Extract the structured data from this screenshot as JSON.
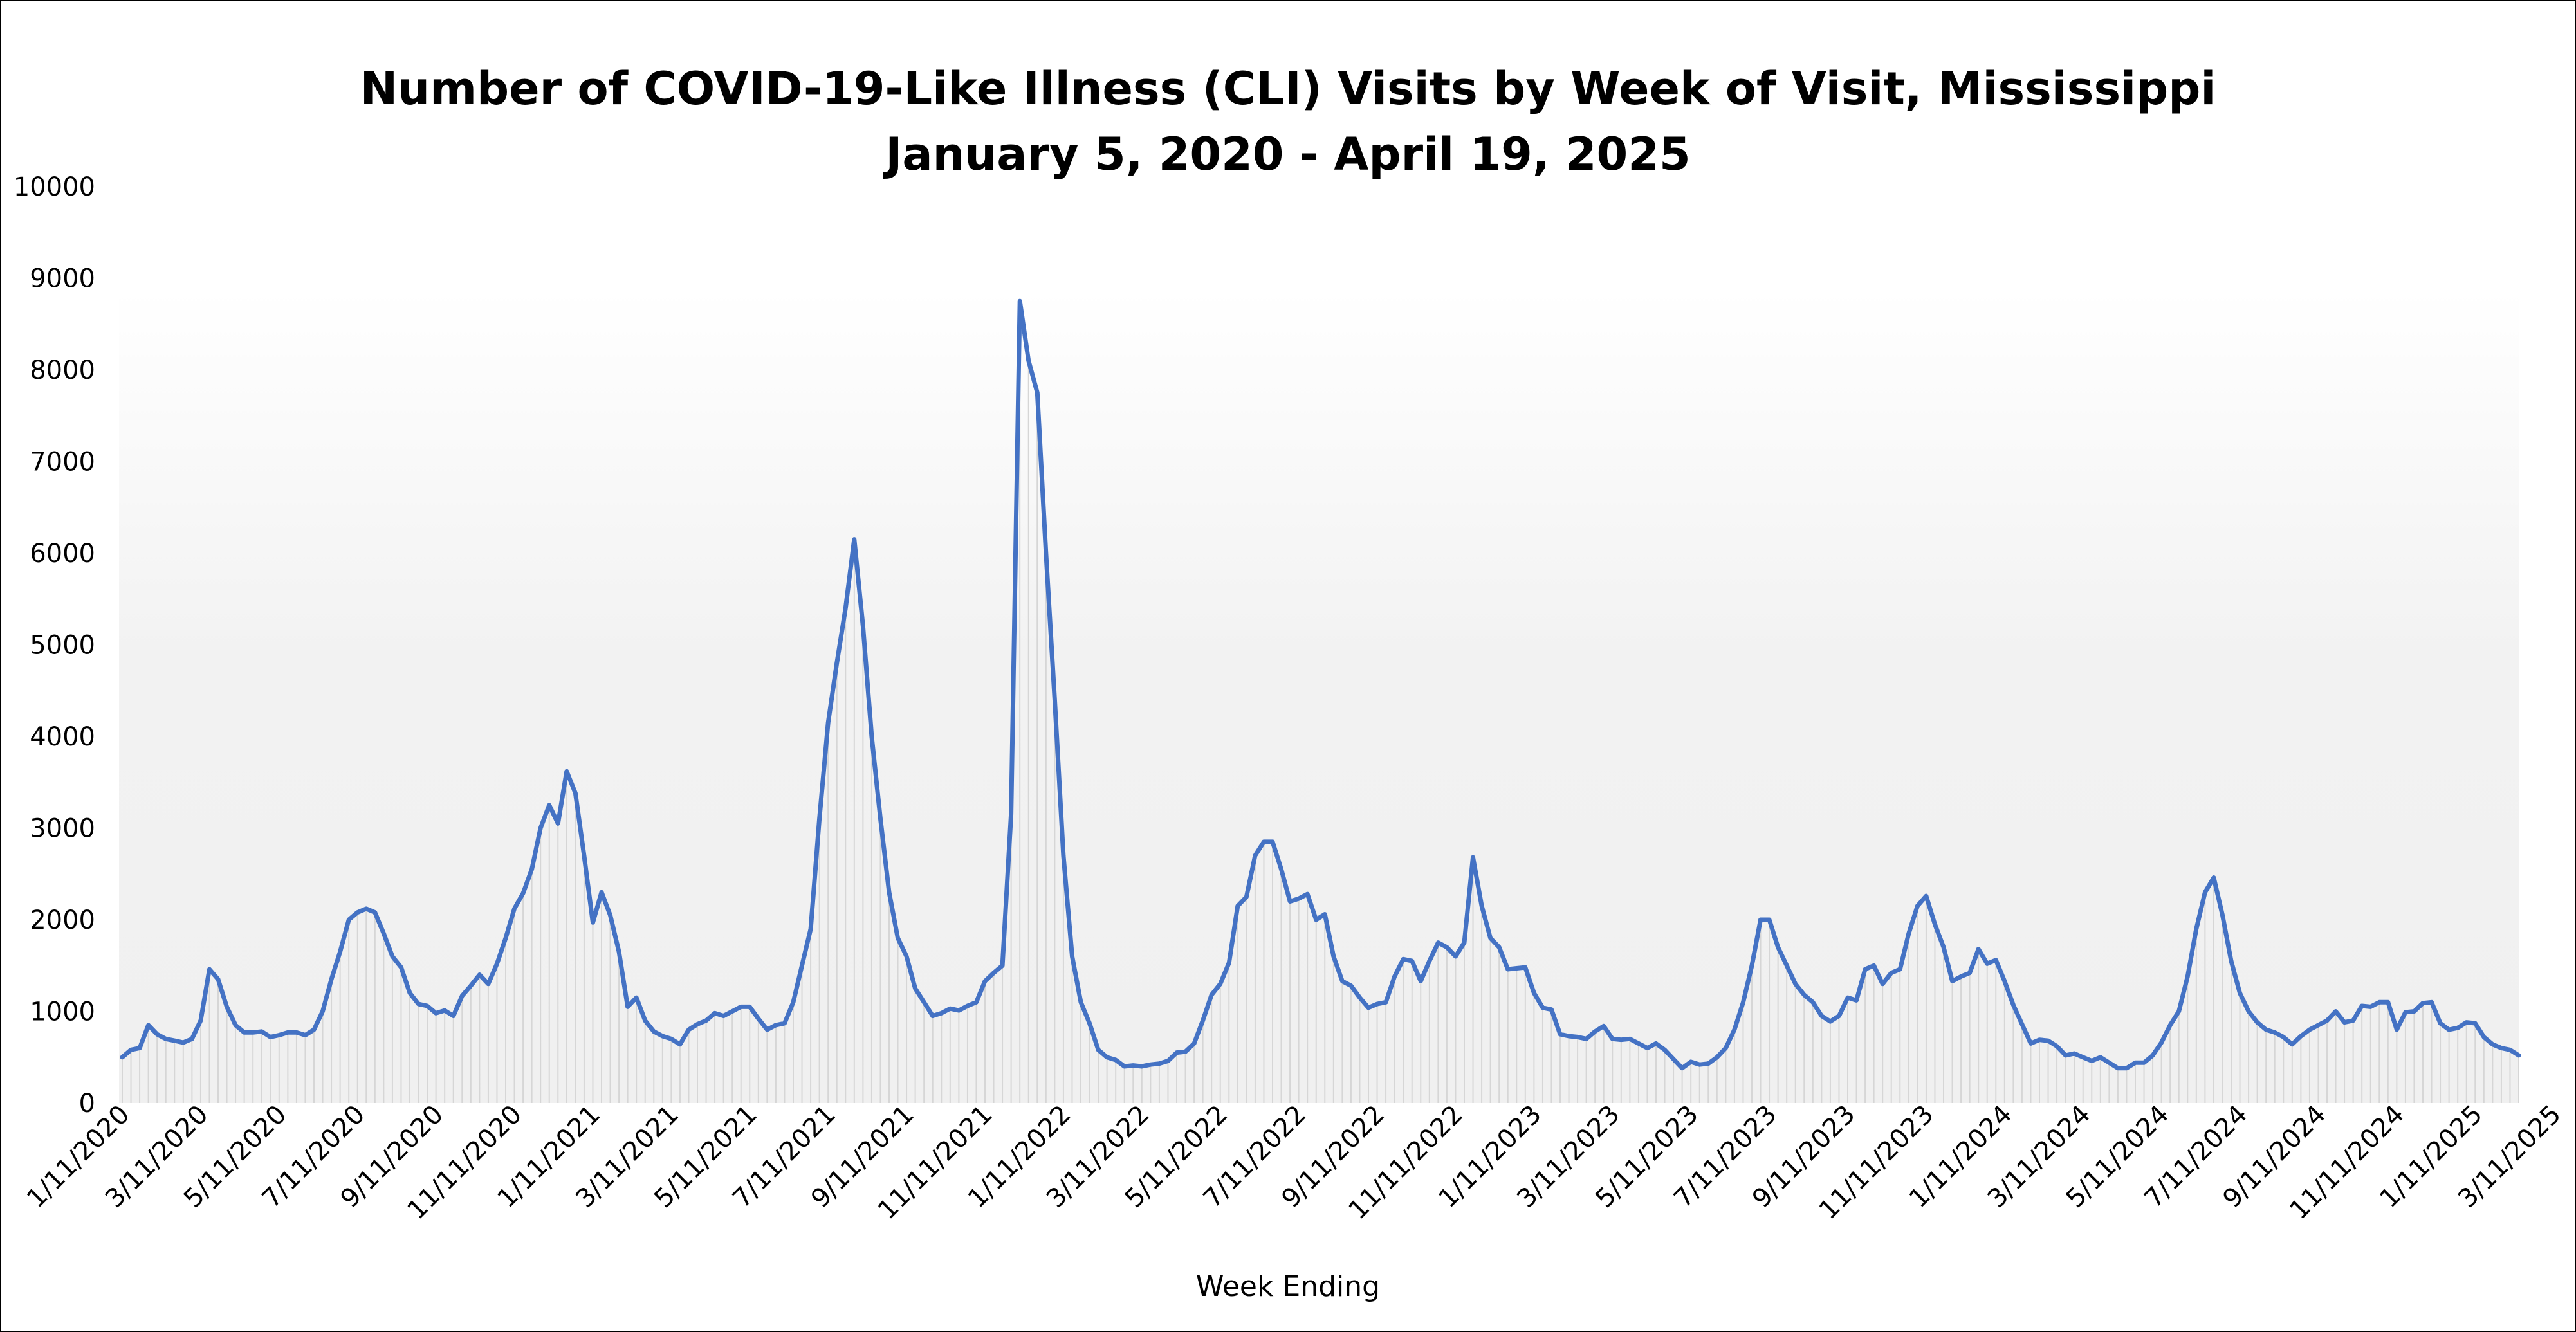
{
  "chart_data": {
    "type": "line",
    "title": "Number of COVID-19-Like Illness (CLI) Visits by Week of Visit, Mississippi",
    "subtitle": "January 5, 2020 - April 19, 2025",
    "xlabel": "Week Ending",
    "ylabel": "",
    "ylim": [
      0,
      10000
    ],
    "y_ticks": [
      "0",
      "1000",
      "2000",
      "3000",
      "4000",
      "5000",
      "6000",
      "7000",
      "8000",
      "9000",
      "10000"
    ],
    "x_tick_labels": [
      "1/11/2020",
      "3/11/2020",
      "5/11/2020",
      "7/11/2020",
      "9/11/2020",
      "11/11/2020",
      "1/11/2021",
      "3/11/2021",
      "5/11/2021",
      "7/11/2021",
      "9/11/2021",
      "11/11/2021",
      "1/11/2022",
      "3/11/2022",
      "5/11/2022",
      "7/11/2022",
      "9/11/2022",
      "11/11/2022",
      "1/11/2023",
      "3/11/2023",
      "5/11/2023",
      "7/11/2023",
      "9/11/2023",
      "11/11/2023",
      "1/11/2024",
      "3/11/2024",
      "5/11/2024",
      "7/11/2024",
      "9/11/2024",
      "11/11/2024",
      "1/11/2025",
      "3/11/2025"
    ],
    "x_range": [
      "1/5/2020",
      "4/19/2025"
    ],
    "grid": false,
    "legend": "none",
    "line_color": "#4472c4",
    "series": [
      {
        "values": [
          500,
          580,
          600,
          850,
          750,
          700,
          680,
          660,
          700,
          900,
          1460,
          1350,
          1050,
          850,
          770,
          770,
          780,
          720,
          740,
          770,
          770,
          740,
          800,
          1000,
          1350,
          1650,
          2000,
          2080,
          2120,
          2080,
          1850,
          1600,
          1480,
          1200,
          1080,
          1060,
          980,
          1010,
          950,
          1170,
          1280,
          1400,
          1300,
          1520,
          1800,
          2120,
          2290,
          2550,
          3000,
          3250,
          3050,
          3620,
          3380,
          2700,
          1970,
          2300,
          2050,
          1650,
          1050,
          1150,
          900,
          780,
          730,
          700,
          640,
          800,
          860,
          900,
          980,
          950,
          1000,
          1050,
          1050,
          920,
          800,
          850,
          870,
          1100,
          1500,
          1900,
          3100,
          4150,
          4800,
          5400,
          6150,
          5200,
          4000,
          3100,
          2300,
          1800,
          1600,
          1250,
          1100,
          950,
          980,
          1030,
          1010,
          1060,
          1100,
          1330,
          1420,
          1500,
          3150,
          8750,
          8100,
          7750,
          6000,
          4400,
          2700,
          1600,
          1100,
          870,
          580,
          500,
          470,
          400,
          410,
          400,
          420,
          430,
          460,
          550,
          560,
          650,
          900,
          1180,
          1300,
          1530,
          2150,
          2250,
          2700,
          2850,
          2850,
          2550,
          2200,
          2230,
          2280,
          2000,
          2060,
          1600,
          1330,
          1280,
          1150,
          1040,
          1080,
          1100,
          1380,
          1570,
          1550,
          1330,
          1550,
          1750,
          1700,
          1600,
          1750,
          2680,
          2150,
          1800,
          1700,
          1460,
          1470,
          1480,
          1200,
          1040,
          1020,
          750,
          730,
          720,
          700,
          780,
          840,
          700,
          690,
          700,
          650,
          600,
          650,
          580,
          480,
          380,
          450,
          420,
          430,
          500,
          600,
          800,
          1100,
          1500,
          2000,
          2000,
          1700,
          1500,
          1300,
          1180,
          1100,
          950,
          890,
          950,
          1150,
          1120,
          1460,
          1500,
          1300,
          1420,
          1460,
          1850,
          2150,
          2260,
          1950,
          1700,
          1330,
          1380,
          1420,
          1680,
          1520,
          1560,
          1330,
          1070,
          860,
          650,
          690,
          680,
          620,
          520,
          540,
          500,
          460,
          500,
          440,
          380,
          380,
          440,
          440,
          520,
          660,
          850,
          1000,
          1380,
          1900,
          2300,
          2460,
          2050,
          1550,
          1200,
          1000,
          880,
          800,
          770,
          720,
          640,
          730,
          800,
          850,
          900,
          1000,
          880,
          900,
          1060,
          1050,
          1100,
          1100,
          800,
          990,
          1000,
          1090,
          1100,
          870,
          800,
          820,
          880,
          870,
          720,
          640,
          600,
          580,
          520
        ]
      }
    ]
  }
}
